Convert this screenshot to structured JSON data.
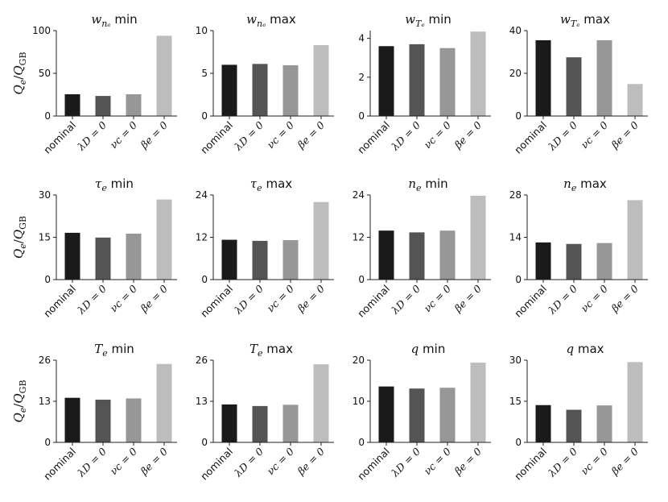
{
  "figure": {
    "ylabel": "Qe/QGB",
    "ylabel_parts": {
      "base": "Q",
      "base_sub": "e",
      "div": "/",
      "den": "Q",
      "den_sub": "GB"
    }
  },
  "chart_data": [
    {
      "type": "bar",
      "title": "w_{n_e} min",
      "title_display": {
        "math": "w",
        "sub": "nₑ",
        "word": " min"
      },
      "categories": [
        "nominal",
        "λD = 0",
        "νc = 0",
        "βe = 0"
      ],
      "values": [
        25.5,
        23.5,
        25.5,
        94
      ],
      "ylim": [
        0,
        100
      ],
      "yticks": [
        0,
        50,
        100
      ]
    },
    {
      "type": "bar",
      "title": "w_{n_e} max",
      "title_display": {
        "math": "w",
        "sub": "nₑ",
        "word": " max"
      },
      "categories": [
        "nominal",
        "λD = 0",
        "νc = 0",
        "βe = 0"
      ],
      "values": [
        6.0,
        6.1,
        5.95,
        8.3
      ],
      "ylim": [
        0,
        10
      ],
      "yticks": [
        0,
        5,
        10
      ]
    },
    {
      "type": "bar",
      "title": "w_{T_e} min",
      "title_display": {
        "math": "w",
        "sub": "Tₑ",
        "word": " min"
      },
      "categories": [
        "nominal",
        "λD = 0",
        "νc = 0",
        "βe = 0"
      ],
      "values": [
        3.6,
        3.7,
        3.5,
        4.35
      ],
      "ylim": [
        0,
        4.4
      ],
      "yticks": [
        0,
        2,
        4
      ]
    },
    {
      "type": "bar",
      "title": "w_{T_e} max",
      "title_display": {
        "math": "w",
        "sub": "Tₑ",
        "word": " max"
      },
      "categories": [
        "nominal",
        "λD = 0",
        "νc = 0",
        "βe = 0"
      ],
      "values": [
        35.5,
        27.5,
        35.5,
        15
      ],
      "ylim": [
        0,
        40
      ],
      "yticks": [
        0,
        20,
        40
      ]
    },
    {
      "type": "bar",
      "title": "τe min",
      "title_display": {
        "math": "τ",
        "sub": "e",
        "word": " min"
      },
      "categories": [
        "nominal",
        "λD = 0",
        "νc = 0",
        "βe = 0"
      ],
      "values": [
        16.6,
        14.9,
        16.3,
        28.4
      ],
      "ylim": [
        0,
        30
      ],
      "yticks": [
        0,
        15,
        30
      ]
    },
    {
      "type": "bar",
      "title": "τe max",
      "title_display": {
        "math": "τ",
        "sub": "e",
        "word": " max"
      },
      "categories": [
        "nominal",
        "λD = 0",
        "νc = 0",
        "βe = 0"
      ],
      "values": [
        11.3,
        11.0,
        11.2,
        22.0
      ],
      "ylim": [
        0,
        24
      ],
      "yticks": [
        0,
        12,
        24
      ]
    },
    {
      "type": "bar",
      "title": "ne min",
      "title_display": {
        "math": "n",
        "sub": "e",
        "word": " min"
      },
      "categories": [
        "nominal",
        "λD = 0",
        "νc = 0",
        "βe = 0"
      ],
      "values": [
        13.9,
        13.4,
        13.9,
        23.8
      ],
      "ylim": [
        0,
        24
      ],
      "yticks": [
        0,
        12,
        24
      ]
    },
    {
      "type": "bar",
      "title": "ne max",
      "title_display": {
        "math": "n",
        "sub": "e",
        "word": " max"
      },
      "categories": [
        "nominal",
        "λD = 0",
        "νc = 0",
        "βe = 0"
      ],
      "values": [
        12.3,
        11.8,
        12.1,
        26.3
      ],
      "ylim": [
        0,
        28
      ],
      "yticks": [
        0,
        14,
        28
      ]
    },
    {
      "type": "bar",
      "title": "Te min",
      "title_display": {
        "math": "T",
        "sub": "e",
        "word": " min"
      },
      "categories": [
        "nominal",
        "λD = 0",
        "νc = 0",
        "βe = 0"
      ],
      "values": [
        14.1,
        13.5,
        13.9,
        24.8
      ],
      "ylim": [
        0,
        26
      ],
      "yticks": [
        0,
        13,
        26
      ]
    },
    {
      "type": "bar",
      "title": "Te max",
      "title_display": {
        "math": "T",
        "sub": "e",
        "word": " max"
      },
      "categories": [
        "nominal",
        "λD = 0",
        "νc = 0",
        "βe = 0"
      ],
      "values": [
        12.0,
        11.5,
        11.9,
        24.7
      ],
      "ylim": [
        0,
        26
      ],
      "yticks": [
        0,
        13,
        26
      ]
    },
    {
      "type": "bar",
      "title": "q min",
      "title_display": {
        "math": "q",
        "sub": "",
        "word": " min"
      },
      "categories": [
        "nominal",
        "λD = 0",
        "νc = 0",
        "βe = 0"
      ],
      "values": [
        13.6,
        13.1,
        13.3,
        19.4
      ],
      "ylim": [
        0,
        20
      ],
      "yticks": [
        0,
        10,
        20
      ]
    },
    {
      "type": "bar",
      "title": "q max",
      "title_display": {
        "math": "q",
        "sub": "",
        "word": " max"
      },
      "categories": [
        "nominal",
        "λD = 0",
        "νc = 0",
        "βe = 0"
      ],
      "values": [
        13.6,
        11.9,
        13.5,
        29.3
      ],
      "ylim": [
        0,
        30
      ],
      "yticks": [
        0,
        15,
        30
      ]
    }
  ],
  "colors": {
    "bars": [
      "#1a1a1a",
      "#545454",
      "#979797",
      "#bdbdbd"
    ],
    "axis": "#222222"
  }
}
